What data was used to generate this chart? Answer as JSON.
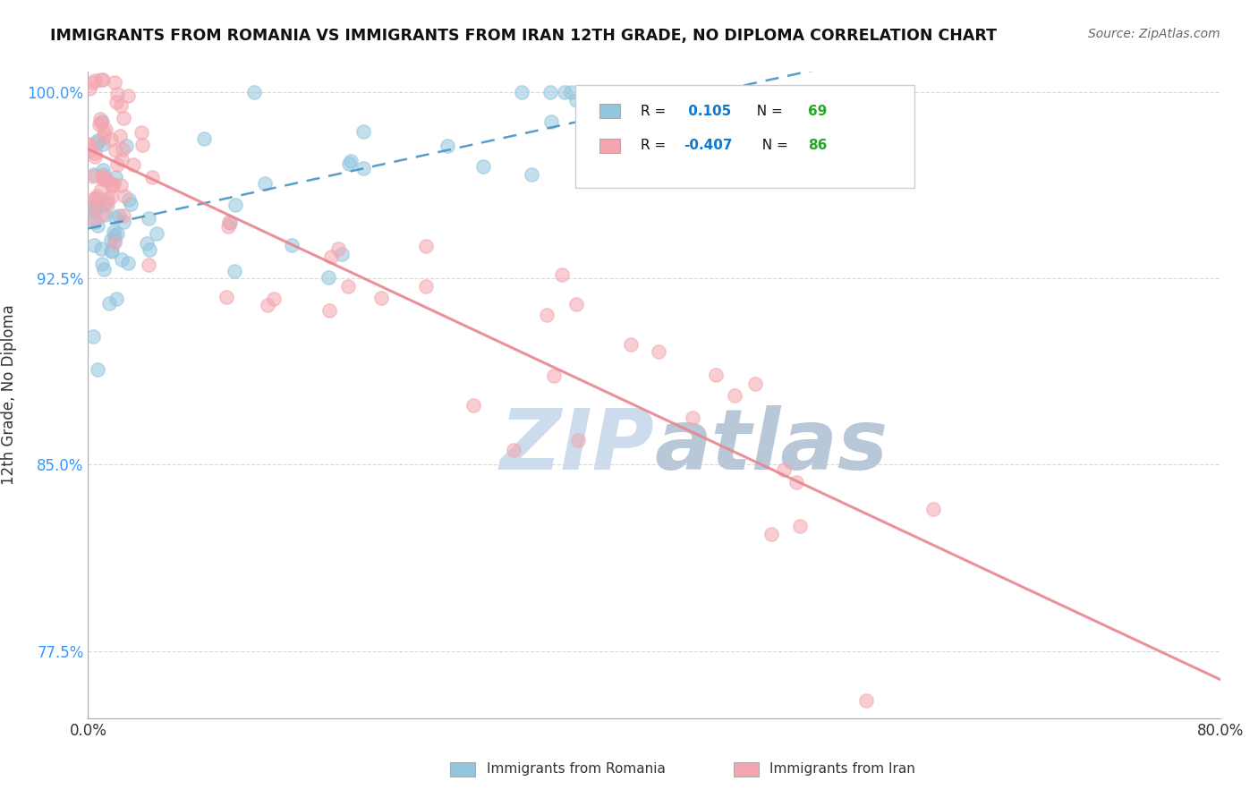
{
  "title": "IMMIGRANTS FROM ROMANIA VS IMMIGRANTS FROM IRAN 12TH GRADE, NO DIPLOMA CORRELATION CHART",
  "source": "Source: ZipAtlas.com",
  "xlabel_romania": "Immigrants from Romania",
  "xlabel_iran": "Immigrants from Iran",
  "ylabel": "12th Grade, No Diploma",
  "xlim": [
    0.0,
    0.8
  ],
  "ylim": [
    0.748,
    1.008
  ],
  "xtick_vals": [
    0.0,
    0.8
  ],
  "xtick_labels": [
    "0.0%",
    "80.0%"
  ],
  "ytick_vals": [
    0.775,
    0.85,
    0.925,
    1.0
  ],
  "ytick_labels": [
    "77.5%",
    "85.0%",
    "92.5%",
    "100.0%"
  ],
  "romania_R": 0.105,
  "romania_N": 69,
  "iran_R": -0.407,
  "iran_N": 86,
  "romania_color": "#92c5de",
  "iran_color": "#f4a6b0",
  "romania_line_color": "#4393c3",
  "iran_line_color": "#e8858f",
  "background_color": "#ffffff",
  "grid_color": "#d8d8d8",
  "watermark_color": "#ccdcec",
  "romania_seed": 42,
  "iran_seed": 99
}
